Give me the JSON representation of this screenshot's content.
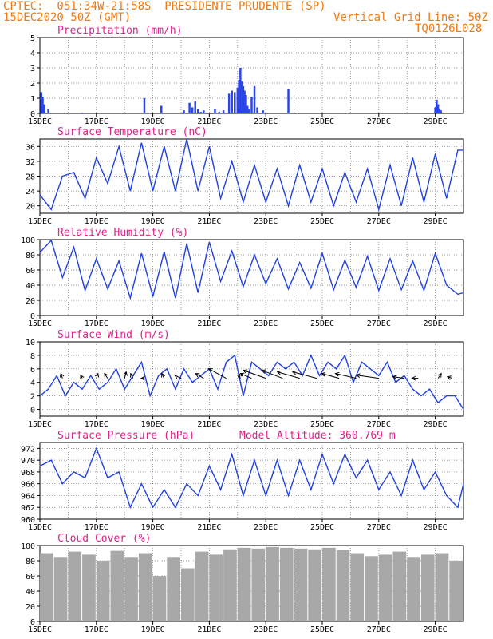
{
  "header": {
    "line1": "CPTEC:  051:34W-21:58S  PRESIDENTE PRUDENTE (SP)",
    "date": "15DEC2020 50Z (GMT)",
    "grid_note": "Vertical Grid Line: 50Z",
    "code": "TQ0126L028"
  },
  "colors": {
    "header": "#f07a10",
    "title": "#e0208a",
    "series": "#2040e0",
    "bars": "#2a45e8",
    "cloud": "#a8a8a8"
  },
  "chart_data": [
    {
      "type": "bar",
      "title": "Precipitation (mm/h)",
      "ylim": [
        0,
        5
      ],
      "yticks": [
        0,
        1,
        2,
        3,
        4,
        5
      ],
      "xtick_labels": [
        "15DEC",
        "17DEC",
        "19DEC",
        "21DEC",
        "23DEC",
        "25DEC",
        "27DEC",
        "29DEC"
      ],
      "x": [
        0.05,
        0.1,
        0.15,
        0.3,
        1.5,
        3.7,
        4.3,
        5.1,
        5.3,
        5.4,
        5.5,
        5.6,
        5.7,
        5.8,
        5.9,
        6.2,
        6.35,
        6.5,
        6.7,
        6.8,
        6.9,
        7.0,
        7.05,
        7.1,
        7.15,
        7.2,
        7.25,
        7.3,
        7.35,
        7.4,
        7.5,
        7.6,
        7.7,
        7.9,
        8.8,
        14.0,
        14.05,
        14.1,
        14.15,
        14.2
      ],
      "values": [
        1.4,
        1.1,
        0.6,
        0.3,
        0.05,
        1.0,
        0.5,
        0.2,
        0.7,
        0.4,
        0.8,
        0.3,
        0.1,
        0.2,
        0.05,
        0.3,
        0.1,
        0.2,
        1.3,
        1.5,
        1.4,
        1.7,
        2.2,
        3.0,
        2.1,
        1.8,
        1.5,
        1.2,
        0.5,
        0.3,
        1.1,
        1.8,
        0.4,
        0.2,
        1.6,
        0.4,
        0.9,
        0.6,
        0.3,
        0.2
      ]
    },
    {
      "type": "line",
      "title": "Surface Temperature (nC)",
      "ylim": [
        18,
        38
      ],
      "yticks": [
        20,
        24,
        28,
        32,
        36
      ],
      "xtick_labels": [
        "15DEC",
        "17DEC",
        "19DEC",
        "21DEC",
        "23DEC",
        "25DEC",
        "27DEC",
        "29DEC"
      ],
      "x": [
        0,
        0.4,
        0.8,
        1.2,
        1.6,
        2.0,
        2.4,
        2.8,
        3.2,
        3.6,
        4.0,
        4.4,
        4.8,
        5.2,
        5.6,
        6.0,
        6.4,
        6.8,
        7.2,
        7.6,
        8.0,
        8.4,
        8.8,
        9.2,
        9.6,
        10.0,
        10.4,
        10.8,
        11.2,
        11.6,
        12.0,
        12.4,
        12.8,
        13.2,
        13.6,
        14.0,
        14.4,
        14.8,
        15.0
      ],
      "values": [
        23,
        19,
        28,
        29,
        22,
        33,
        26,
        36,
        24,
        37,
        24,
        36,
        24,
        38,
        24,
        36,
        22,
        32,
        21,
        31,
        21,
        30,
        20,
        31,
        21,
        30,
        20,
        29,
        21,
        30,
        19,
        31,
        20,
        33,
        21,
        34,
        22,
        35,
        35
      ]
    },
    {
      "type": "line",
      "title": "Relative Humidity (%)",
      "ylim": [
        0,
        100
      ],
      "yticks": [
        0,
        20,
        40,
        60,
        80,
        100
      ],
      "xtick_labels": [
        "15DEC",
        "17DEC",
        "19DEC",
        "21DEC",
        "23DEC",
        "25DEC",
        "27DEC",
        "29DEC"
      ],
      "x": [
        0,
        0.4,
        0.8,
        1.2,
        1.6,
        2.0,
        2.4,
        2.8,
        3.2,
        3.6,
        4.0,
        4.4,
        4.8,
        5.2,
        5.6,
        6.0,
        6.4,
        6.8,
        7.2,
        7.6,
        8.0,
        8.4,
        8.8,
        9.2,
        9.6,
        10.0,
        10.4,
        10.8,
        11.2,
        11.6,
        12.0,
        12.4,
        12.8,
        13.2,
        13.6,
        14.0,
        14.4,
        14.8,
        15.0
      ],
      "values": [
        83,
        99,
        50,
        90,
        33,
        75,
        35,
        72,
        23,
        82,
        25,
        84,
        23,
        95,
        30,
        97,
        45,
        85,
        38,
        80,
        42,
        75,
        35,
        70,
        36,
        82,
        34,
        73,
        37,
        78,
        33,
        75,
        34,
        72,
        33,
        82,
        40,
        28,
        30
      ]
    },
    {
      "type": "line",
      "title": "Surface Wind (m/s)",
      "ylim": [
        -1,
        10
      ],
      "yticks": [
        0,
        2,
        4,
        6,
        8,
        10
      ],
      "xtick_labels": [
        "15DEC",
        "17DEC",
        "19DEC",
        "21DEC",
        "23DEC",
        "25DEC",
        "27DEC",
        "29DEC"
      ],
      "x": [
        0,
        0.3,
        0.6,
        0.9,
        1.2,
        1.5,
        1.8,
        2.1,
        2.4,
        2.7,
        3.0,
        3.3,
        3.6,
        3.9,
        4.2,
        4.5,
        4.8,
        5.1,
        5.4,
        5.7,
        6.0,
        6.3,
        6.6,
        6.9,
        7.2,
        7.5,
        7.8,
        8.1,
        8.4,
        8.7,
        9.0,
        9.3,
        9.6,
        9.9,
        10.2,
        10.5,
        10.8,
        11.1,
        11.4,
        11.7,
        12.0,
        12.3,
        12.6,
        12.9,
        13.2,
        13.5,
        13.8,
        14.1,
        14.4,
        14.7,
        15.0
      ],
      "values": [
        2,
        3,
        5,
        2,
        4,
        3,
        5,
        3,
        4,
        6,
        3,
        5,
        7,
        2,
        5,
        6,
        3,
        6,
        4,
        5,
        6,
        3,
        7,
        8,
        2,
        7,
        6,
        5,
        7,
        6,
        7,
        5,
        8,
        5,
        7,
        6,
        8,
        4,
        7,
        6,
        5,
        7,
        4,
        5,
        3,
        2,
        3,
        1,
        2,
        2,
        0
      ],
      "arrows": [
        {
          "x": 0.8,
          "dx": -2,
          "dy": 6
        },
        {
          "x": 1.5,
          "dx": -2,
          "dy": 4
        },
        {
          "x": 2.0,
          "dx": 2,
          "dy": 6
        },
        {
          "x": 2.4,
          "dx": -4,
          "dy": 6
        },
        {
          "x": 3.0,
          "dx": 2,
          "dy": 8
        },
        {
          "x": 3.3,
          "dx": -3,
          "dy": 6
        },
        {
          "x": 3.7,
          "dx": -4,
          "dy": 0
        },
        {
          "x": 4.4,
          "dx": -3,
          "dy": 6
        },
        {
          "x": 5.0,
          "dx": -8,
          "dy": 4
        },
        {
          "x": 5.8,
          "dx": -10,
          "dy": 6
        },
        {
          "x": 6.6,
          "dx": -22,
          "dy": 12
        },
        {
          "x": 7.1,
          "dx": -2,
          "dy": 6
        },
        {
          "x": 7.5,
          "dx": -14,
          "dy": 6
        },
        {
          "x": 8.0,
          "dx": -28,
          "dy": 10
        },
        {
          "x": 8.6,
          "dx": -26,
          "dy": 10
        },
        {
          "x": 9.2,
          "dx": -28,
          "dy": 8
        },
        {
          "x": 9.8,
          "dx": -30,
          "dy": 8
        },
        {
          "x": 10.6,
          "dx": -22,
          "dy": 6
        },
        {
          "x": 11.2,
          "dx": -26,
          "dy": 6
        },
        {
          "x": 12.0,
          "dx": -28,
          "dy": 4
        },
        {
          "x": 12.9,
          "dx": -14,
          "dy": 2
        },
        {
          "x": 13.4,
          "dx": -8,
          "dy": 0
        },
        {
          "x": 14.1,
          "dx": 4,
          "dy": 6
        },
        {
          "x": 14.6,
          "dx": -6,
          "dy": 2
        }
      ]
    },
    {
      "type": "line",
      "title": "Surface Pressure (hPa)",
      "annotation": "Model Altitude: 360.769 m",
      "ylim": [
        960,
        973
      ],
      "yticks": [
        960,
        962,
        964,
        966,
        968,
        970,
        972
      ],
      "xtick_labels": [
        "15DEC",
        "17DEC",
        "19DEC",
        "21DEC",
        "23DEC",
        "25DEC",
        "27DEC",
        "29DEC"
      ],
      "x": [
        0,
        0.4,
        0.8,
        1.2,
        1.6,
        2.0,
        2.4,
        2.8,
        3.2,
        3.6,
        4.0,
        4.4,
        4.8,
        5.2,
        5.6,
        6.0,
        6.4,
        6.8,
        7.2,
        7.6,
        8.0,
        8.4,
        8.8,
        9.2,
        9.6,
        10.0,
        10.4,
        10.8,
        11.2,
        11.6,
        12.0,
        12.4,
        12.8,
        13.2,
        13.6,
        14.0,
        14.4,
        14.8,
        15.0
      ],
      "values": [
        969,
        970,
        966,
        968,
        967,
        972,
        967,
        968,
        962,
        966,
        962,
        965,
        962,
        966,
        964,
        969,
        965,
        971,
        964,
        970,
        964,
        970,
        964,
        970,
        965,
        971,
        966,
        971,
        967,
        970,
        965,
        968,
        964,
        970,
        965,
        968,
        964,
        962,
        966
      ]
    },
    {
      "type": "bar",
      "title": "Cloud Cover (%)",
      "ylim": [
        0,
        100
      ],
      "yticks": [
        0,
        20,
        40,
        60,
        80,
        100
      ],
      "xtick_labels": [
        "15DEC",
        "17DEC",
        "19DEC",
        "21DEC",
        "23DEC",
        "25DEC",
        "27DEC",
        "29DEC"
      ],
      "x": [
        0.0,
        0.5,
        1.0,
        1.5,
        2.0,
        2.5,
        3.0,
        3.5,
        4.0,
        4.5,
        5.0,
        5.5,
        6.0,
        6.5,
        7.0,
        7.5,
        8.0,
        8.5,
        9.0,
        9.5,
        10.0,
        10.5,
        11.0,
        11.5,
        12.0,
        12.5,
        13.0,
        13.5,
        14.0,
        14.5
      ],
      "values": [
        90,
        85,
        92,
        88,
        80,
        93,
        85,
        90,
        60,
        85,
        70,
        92,
        88,
        95,
        97,
        96,
        98,
        97,
        96,
        95,
        97,
        94,
        90,
        86,
        88,
        92,
        85,
        88,
        90,
        80
      ]
    }
  ]
}
